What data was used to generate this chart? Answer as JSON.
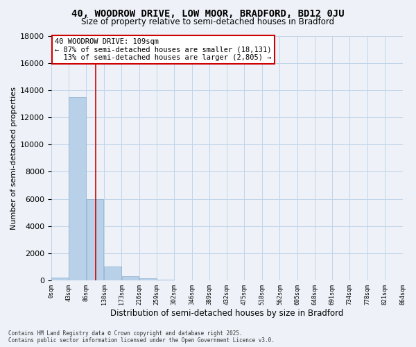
{
  "title_line1": "40, WOODROW DRIVE, LOW MOOR, BRADFORD, BD12 0JU",
  "title_line2": "Size of property relative to semi-detached houses in Bradford",
  "xlabel": "Distribution of semi-detached houses by size in Bradford",
  "ylabel": "Number of semi-detached properties",
  "bin_labels": [
    "0sqm",
    "43sqm",
    "86sqm",
    "130sqm",
    "173sqm",
    "216sqm",
    "259sqm",
    "302sqm",
    "346sqm",
    "389sqm",
    "432sqm",
    "475sqm",
    "518sqm",
    "562sqm",
    "605sqm",
    "648sqm",
    "691sqm",
    "734sqm",
    "778sqm",
    "821sqm",
    "864sqm"
  ],
  "bin_edges": [
    0,
    43,
    86,
    130,
    173,
    216,
    259,
    302,
    346,
    389,
    432,
    475,
    518,
    562,
    605,
    648,
    691,
    734,
    778,
    821,
    864
  ],
  "bar_heights": [
    200,
    13500,
    6000,
    1050,
    300,
    170,
    80,
    0,
    0,
    0,
    0,
    0,
    0,
    0,
    0,
    0,
    0,
    0,
    0,
    0
  ],
  "bar_color": "#b8d0e8",
  "bar_edge_color": "#8ab0d0",
  "grid_color": "#c0d4e8",
  "background_color": "#eef2f8",
  "property_size": 109,
  "red_line_color": "#cc0000",
  "annotation_line1": "40 WOODROW DRIVE: 109sqm",
  "annotation_line2": "← 87% of semi-detached houses are smaller (18,131)",
  "annotation_line3": "  13% of semi-detached houses are larger (2,805) →",
  "annotation_box_color": "#ffffff",
  "annotation_box_edge": "#cc0000",
  "ylim": [
    0,
    18000
  ],
  "yticks": [
    0,
    2000,
    4000,
    6000,
    8000,
    10000,
    12000,
    14000,
    16000,
    18000
  ],
  "footer_line1": "Contains HM Land Registry data © Crown copyright and database right 2025.",
  "footer_line2": "Contains public sector information licensed under the Open Government Licence v3.0."
}
